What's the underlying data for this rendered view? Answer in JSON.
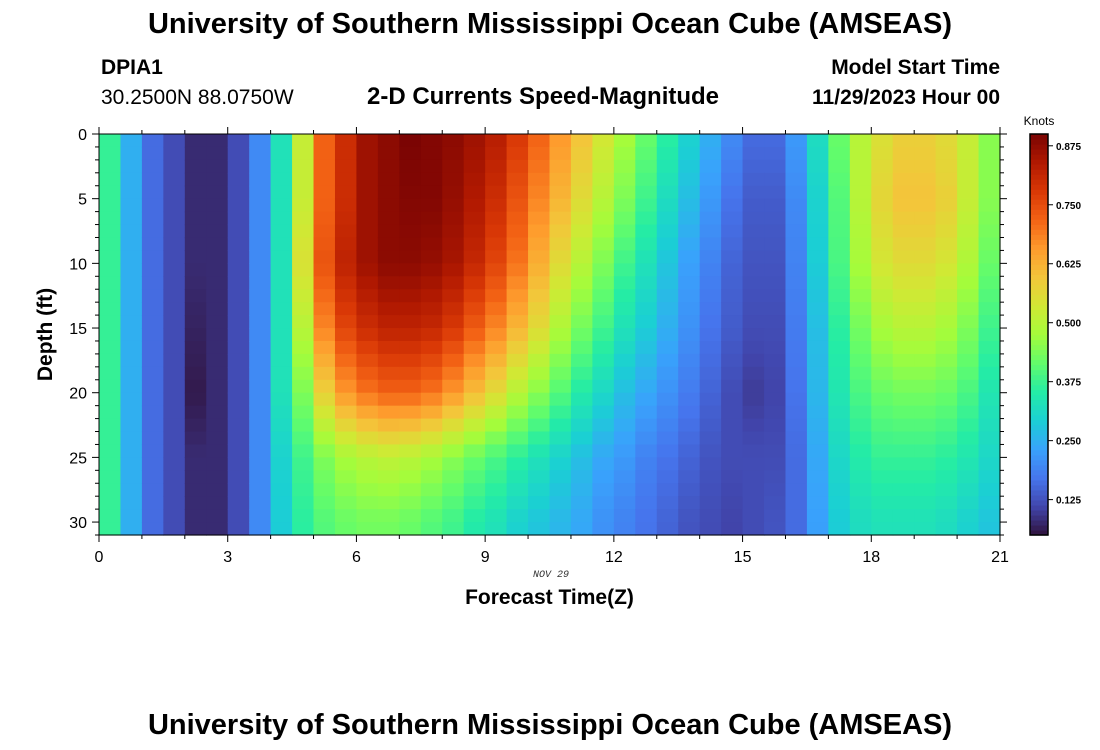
{
  "header": {
    "title": "University of Southern Mississippi Ocean Cube (AMSEAS)",
    "station_id": "DPIA1",
    "station_coords": "30.2500N  88.0750W",
    "chart_title": "2-D Currents Speed-Magnitude",
    "model_start_label": "Model Start Time",
    "model_start_value": "11/29/2023 Hour 00"
  },
  "footer": {
    "title": "University of Southern Mississippi Ocean Cube (AMSEAS)"
  },
  "chart_data": {
    "type": "heatmap",
    "title": "2-D Currents Speed-Magnitude",
    "xlabel": "Forecast Time(Z)",
    "ylabel": "Depth (ft)",
    "date_label": "NOV 29",
    "xlim": [
      0,
      21
    ],
    "ylim": [
      31,
      0
    ],
    "x_ticks": [
      0,
      3,
      6,
      9,
      12,
      15,
      18,
      21
    ],
    "y_ticks": [
      0,
      5,
      10,
      15,
      20,
      25,
      30
    ],
    "colorbar": {
      "label": "Knots",
      "range": [
        0.05,
        0.9
      ],
      "ticks": [
        "0.125",
        "0.250",
        "0.375",
        "0.500",
        "0.625",
        "0.750",
        "0.875"
      ],
      "colors": [
        "#30123b",
        "#4145ab",
        "#4675ed",
        "#39a2fc",
        "#1bcfd4",
        "#24eca6",
        "#61fc6c",
        "#a4fc3b",
        "#d1e834",
        "#f3c63a",
        "#fe9b2d",
        "#f36315",
        "#d93806",
        "#b11901",
        "#7a0403"
      ]
    },
    "time_columns": [
      0.25,
      0.75,
      1.25,
      1.75,
      2.25,
      2.75,
      3.25,
      3.75,
      4.25,
      4.75,
      5.25,
      5.75,
      6.25,
      6.75,
      7.25,
      7.75,
      8.25,
      8.75,
      9.25,
      9.75,
      10.25,
      10.75,
      11.25,
      11.75,
      12.25,
      12.75,
      13.25,
      13.75,
      14.25,
      14.75,
      15.25,
      15.75,
      16.25,
      16.75,
      17.25,
      17.75,
      18.25,
      18.75,
      19.25,
      19.75,
      20.25,
      20.75
    ],
    "depth_rows": [
      0,
      5,
      10,
      15,
      20,
      25,
      30
    ],
    "speed_knots": [
      [
        0.37,
        0.25,
        0.16,
        0.12,
        0.08,
        0.08,
        0.12,
        0.2,
        0.33,
        0.52,
        0.72,
        0.8,
        0.86,
        0.88,
        0.9,
        0.89,
        0.88,
        0.86,
        0.83,
        0.78,
        0.72,
        0.66,
        0.6,
        0.54,
        0.48,
        0.42,
        0.36,
        0.3,
        0.25,
        0.2,
        0.16,
        0.16,
        0.22,
        0.32,
        0.42,
        0.5,
        0.55,
        0.58,
        0.58,
        0.56,
        0.52,
        0.45
      ],
      [
        0.37,
        0.25,
        0.16,
        0.12,
        0.08,
        0.08,
        0.12,
        0.2,
        0.33,
        0.52,
        0.72,
        0.8,
        0.86,
        0.88,
        0.89,
        0.89,
        0.87,
        0.84,
        0.8,
        0.74,
        0.68,
        0.62,
        0.56,
        0.5,
        0.44,
        0.38,
        0.32,
        0.27,
        0.22,
        0.17,
        0.14,
        0.14,
        0.2,
        0.3,
        0.4,
        0.5,
        0.57,
        0.6,
        0.6,
        0.58,
        0.52,
        0.45
      ],
      [
        0.37,
        0.25,
        0.16,
        0.12,
        0.08,
        0.08,
        0.12,
        0.2,
        0.33,
        0.55,
        0.74,
        0.82,
        0.86,
        0.88,
        0.88,
        0.87,
        0.85,
        0.81,
        0.76,
        0.7,
        0.63,
        0.56,
        0.5,
        0.44,
        0.38,
        0.33,
        0.28,
        0.23,
        0.19,
        0.15,
        0.13,
        0.13,
        0.19,
        0.29,
        0.39,
        0.48,
        0.54,
        0.56,
        0.56,
        0.54,
        0.49,
        0.42
      ],
      [
        0.37,
        0.25,
        0.16,
        0.12,
        0.07,
        0.08,
        0.12,
        0.2,
        0.33,
        0.5,
        0.68,
        0.76,
        0.8,
        0.82,
        0.82,
        0.81,
        0.78,
        0.73,
        0.68,
        0.62,
        0.56,
        0.49,
        0.43,
        0.38,
        0.33,
        0.29,
        0.25,
        0.21,
        0.17,
        0.14,
        0.12,
        0.12,
        0.18,
        0.27,
        0.36,
        0.43,
        0.48,
        0.5,
        0.5,
        0.48,
        0.44,
        0.38
      ],
      [
        0.37,
        0.25,
        0.16,
        0.12,
        0.06,
        0.08,
        0.12,
        0.2,
        0.33,
        0.44,
        0.58,
        0.66,
        0.7,
        0.72,
        0.72,
        0.7,
        0.66,
        0.61,
        0.56,
        0.5,
        0.45,
        0.4,
        0.35,
        0.31,
        0.27,
        0.24,
        0.21,
        0.18,
        0.15,
        0.12,
        0.1,
        0.11,
        0.17,
        0.26,
        0.34,
        0.39,
        0.42,
        0.43,
        0.43,
        0.42,
        0.39,
        0.34
      ],
      [
        0.37,
        0.25,
        0.16,
        0.12,
        0.08,
        0.08,
        0.12,
        0.2,
        0.3,
        0.38,
        0.44,
        0.48,
        0.5,
        0.51,
        0.5,
        0.48,
        0.45,
        0.42,
        0.39,
        0.36,
        0.33,
        0.3,
        0.27,
        0.24,
        0.22,
        0.19,
        0.17,
        0.15,
        0.13,
        0.12,
        0.12,
        0.12,
        0.16,
        0.24,
        0.31,
        0.35,
        0.37,
        0.37,
        0.37,
        0.36,
        0.34,
        0.31
      ],
      [
        0.37,
        0.25,
        0.16,
        0.12,
        0.08,
        0.08,
        0.12,
        0.2,
        0.29,
        0.36,
        0.4,
        0.42,
        0.43,
        0.43,
        0.42,
        0.4,
        0.38,
        0.35,
        0.33,
        0.3,
        0.28,
        0.26,
        0.24,
        0.21,
        0.19,
        0.17,
        0.15,
        0.13,
        0.12,
        0.11,
        0.12,
        0.13,
        0.16,
        0.23,
        0.29,
        0.32,
        0.33,
        0.33,
        0.33,
        0.32,
        0.3,
        0.28
      ]
    ]
  }
}
